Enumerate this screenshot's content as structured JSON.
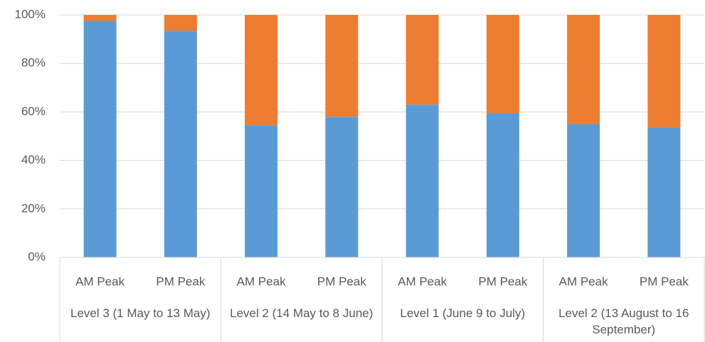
{
  "chart_data": {
    "type": "stacked_bar_100",
    "categories": [
      "AM Peak",
      "PM Peak",
      "AM Peak",
      "PM Peak",
      "AM Peak",
      "PM Peak",
      "AM Peak",
      "PM Peak"
    ],
    "groups": [
      "Level 3 (1 May to 13 May)",
      "Level 2 (14 May to 8 June)",
      "Level 1 (June 9 to July)",
      "Level 2 (13 August to 16 September)"
    ],
    "series": [
      {
        "color": "#5b9bd5",
        "values": [
          97.5,
          93.5,
          54.5,
          58,
          63,
          59.5,
          55,
          53.5
        ]
      },
      {
        "color": "#ed7d31",
        "values": [
          2.5,
          6.5,
          45.5,
          42,
          37,
          40.5,
          45,
          46.5
        ]
      }
    ],
    "ylim": [
      0,
      100
    ],
    "yticks": [
      {
        "value": 0,
        "label": "0%"
      },
      {
        "value": 20,
        "label": "20%"
      },
      {
        "value": 40,
        "label": "40%"
      },
      {
        "value": 60,
        "label": "60%"
      },
      {
        "value": 80,
        "label": "80%"
      },
      {
        "value": 100,
        "label": "100%"
      }
    ],
    "grid": true
  }
}
